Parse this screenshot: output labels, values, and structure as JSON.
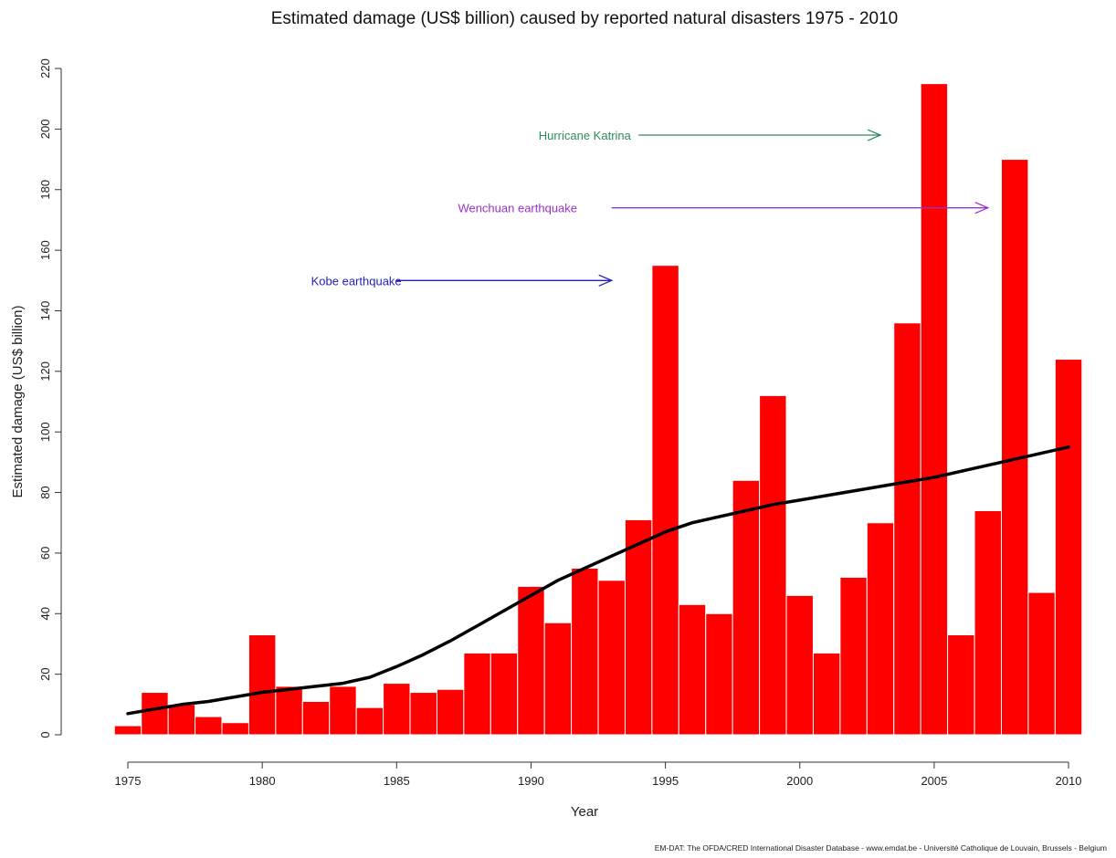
{
  "chart_data": {
    "type": "bar",
    "title": "Estimated damage (US$ billion) caused by reported natural disasters 1975 - 2010",
    "xlabel": "Year",
    "ylabel": "Estimated damage (US$ billion)",
    "source": "EM-DAT: The OFDA/CRED International Disaster Database - www.emdat.be - Université Catholique de Louvain, Brussels - Belgium",
    "ylim": [
      0,
      220
    ],
    "xlim": [
      1975,
      2010
    ],
    "grid": false,
    "bar_color": "#ff0000",
    "trend_color": "#000000",
    "x_ticks": [
      1975,
      1980,
      1985,
      1990,
      1995,
      2000,
      2005,
      2010
    ],
    "x_tick_labels": [
      "1975",
      "1980",
      "1985",
      "1990",
      "1995",
      "2000",
      "2005",
      "2010"
    ],
    "y_ticks": [
      0,
      20,
      40,
      60,
      80,
      100,
      120,
      140,
      160,
      180,
      200,
      220
    ],
    "y_tick_labels": [
      "0",
      "20",
      "40",
      "60",
      "80",
      "100",
      "120",
      "140",
      "160",
      "180",
      "200",
      "220"
    ],
    "categories": [
      1975,
      1976,
      1977,
      1978,
      1979,
      1980,
      1981,
      1982,
      1983,
      1984,
      1985,
      1986,
      1987,
      1988,
      1989,
      1990,
      1991,
      1992,
      1993,
      1994,
      1995,
      1996,
      1997,
      1998,
      1999,
      2000,
      2001,
      2002,
      2003,
      2004,
      2005,
      2006,
      2007,
      2008,
      2009,
      2010
    ],
    "values": [
      3,
      14,
      10,
      6,
      4,
      33,
      16,
      11,
      16,
      9,
      17,
      14,
      15,
      27,
      27,
      49,
      37,
      55,
      51,
      71,
      155,
      43,
      40,
      84,
      112,
      46,
      27,
      52,
      70,
      136,
      215,
      33,
      74,
      190,
      47,
      124
    ],
    "trend": {
      "x": [
        1975,
        1976,
        1977,
        1978,
        1979,
        1980,
        1981,
        1982,
        1983,
        1984,
        1985,
        1986,
        1987,
        1988,
        1989,
        1990,
        1991,
        1992,
        1993,
        1994,
        1995,
        1996,
        1997,
        1998,
        1999,
        2000,
        2001,
        2002,
        2003,
        2004,
        2005,
        2006,
        2007,
        2008,
        2009,
        2010
      ],
      "y": [
        7,
        8.5,
        10,
        11,
        12.5,
        14,
        15,
        16,
        17,
        19,
        22.5,
        26.5,
        31,
        36,
        41,
        46,
        51,
        55,
        59,
        63,
        67,
        70,
        72,
        74,
        76,
        77.5,
        79,
        80.5,
        82,
        83.5,
        85,
        87,
        89,
        91,
        93,
        95
      ]
    },
    "annotations": [
      {
        "label": "Hurricane Katrina",
        "color": "#2e8b57",
        "y": 198,
        "label_x": 1992,
        "arrow_from": 1994,
        "arrow_to": 2003
      },
      {
        "label": "Wenchuan earthquake",
        "color": "#9932cc",
        "y": 174,
        "label_x": 1989.5,
        "arrow_from": 1993,
        "arrow_to": 2007
      },
      {
        "label": "Kobe earthquake",
        "color": "#1f1fbf",
        "y": 150,
        "label_x": 1983.5,
        "arrow_from": 1985,
        "arrow_to": 1993
      }
    ]
  }
}
